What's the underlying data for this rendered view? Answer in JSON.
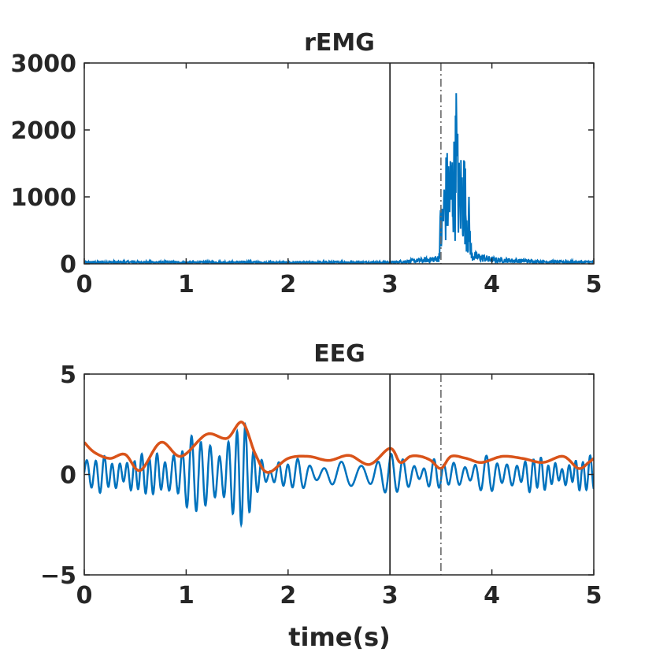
{
  "chart_data": [
    {
      "type": "line",
      "title": "rEMG",
      "xlabel": "",
      "ylabel": "",
      "xlim": [
        0,
        5
      ],
      "ylim": [
        0,
        3000
      ],
      "x_ticks": [
        "0",
        "1",
        "2",
        "3",
        "4",
        "5"
      ],
      "y_ticks": [
        "0",
        "1000",
        "2000",
        "3000"
      ],
      "grid": false,
      "legend": "none",
      "vlines": [
        {
          "x": 3.0,
          "style": "solid",
          "color": "#262626"
        },
        {
          "x": 3.5,
          "style": "dashdot",
          "color": "#6a6a6a"
        }
      ],
      "baseline_level": 20,
      "burst_start": 3.5,
      "burst_end": 3.77,
      "burst_peak": 2550,
      "burst_peak_x": 3.65,
      "series": [
        {
          "color": "#0072BD",
          "x": [
            0,
            0.5,
            1.0,
            1.5,
            2.0,
            2.5,
            3.0,
            3.2,
            3.4,
            3.48,
            3.52,
            3.55,
            3.58,
            3.6,
            3.63,
            3.65,
            3.68,
            3.7,
            3.73,
            3.76,
            3.8,
            3.9,
            4.0,
            4.5,
            5.0
          ],
          "y": [
            20,
            25,
            20,
            22,
            18,
            22,
            20,
            40,
            60,
            80,
            1200,
            1700,
            1800,
            1800,
            2000,
            2550,
            1600,
            1800,
            1800,
            900,
            120,
            90,
            60,
            30,
            25
          ]
        }
      ]
    },
    {
      "type": "line",
      "title": "EEG",
      "xlabel": "time(s)",
      "ylabel": "",
      "xlim": [
        0,
        5
      ],
      "ylim": [
        -5,
        5
      ],
      "x_ticks": [
        "0",
        "1",
        "2",
        "3",
        "4",
        "5"
      ],
      "y_ticks": [
        "-5",
        "0",
        "5"
      ],
      "grid": false,
      "legend": "none",
      "vlines": [
        {
          "x": 3.0,
          "style": "solid",
          "color": "#262626"
        },
        {
          "x": 3.5,
          "style": "dashdot",
          "color": "#6a6a6a"
        }
      ],
      "series": [
        {
          "color": "#0072BD",
          "x": [
            0,
            0.3,
            0.6,
            0.9,
            1.2,
            1.35,
            1.45,
            1.55,
            1.7,
            1.8,
            2.1,
            2.5,
            2.9,
            3.0,
            3.3,
            3.6,
            4.0,
            4.4,
            4.8,
            4.95,
            5.0
          ],
          "y": [
            0.6,
            1.0,
            -0.8,
            1.3,
            2.0,
            -2.0,
            2.3,
            -2.6,
            1.1,
            -0.4,
            0.6,
            -0.7,
            0.9,
            1.2,
            0.5,
            0.7,
            -0.6,
            0.8,
            -0.9,
            0.5,
            -1.0
          ],
          "envelope": [
            0.7,
            1.0,
            0.9,
            1.6,
            2.0,
            2.1,
            2.3,
            2.6,
            1.3,
            0.6,
            0.7,
            0.75,
            0.9,
            1.2,
            0.6,
            0.7,
            0.8,
            0.8,
            0.7,
            0.8,
            0.9
          ]
        },
        {
          "color": "#D95319",
          "x": [
            0,
            0.1,
            0.25,
            0.4,
            0.55,
            0.75,
            0.95,
            1.2,
            1.4,
            1.55,
            1.68,
            1.8,
            2.0,
            2.2,
            2.4,
            2.6,
            2.8,
            3.0,
            3.1,
            3.2,
            3.3,
            3.4,
            3.5,
            3.6,
            3.75,
            3.9,
            4.1,
            4.3,
            4.5,
            4.7,
            4.85,
            4.95,
            5.0
          ],
          "y": [
            1.6,
            1.1,
            0.8,
            1.0,
            0.2,
            1.6,
            0.9,
            2.0,
            1.8,
            2.6,
            1.0,
            0.1,
            0.8,
            0.9,
            0.7,
            0.95,
            0.5,
            1.3,
            0.6,
            0.9,
            0.9,
            0.7,
            0.3,
            0.9,
            0.8,
            0.6,
            0.9,
            0.8,
            0.6,
            0.9,
            0.3,
            0.6,
            0.8
          ]
        }
      ]
    }
  ]
}
